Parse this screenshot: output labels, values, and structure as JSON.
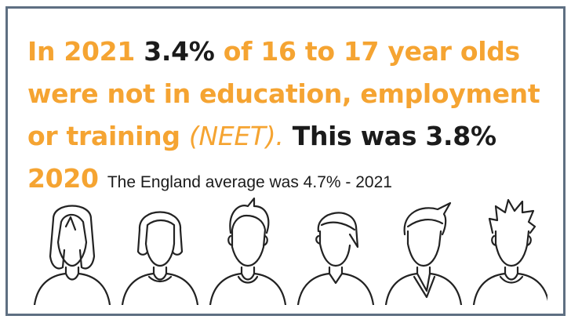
{
  "headline": {
    "t1": "In 2021 ",
    "v1": "3.4%",
    "t2": " of 16 to 17 year olds were not in education, employment or training ",
    "t3": "(NEET).",
    "t4": " This was ",
    "v2": "3.8%",
    "v3": "2020",
    "note": "The England average was 4.7% - 2021"
  },
  "icons": [
    "person-icon-1",
    "person-icon-2",
    "person-icon-3",
    "person-icon-4",
    "person-icon-5",
    "person-icon-6"
  ],
  "colors": {
    "accent": "#f5a432",
    "text": "#1b1b1b",
    "border": "#5e6f82"
  }
}
